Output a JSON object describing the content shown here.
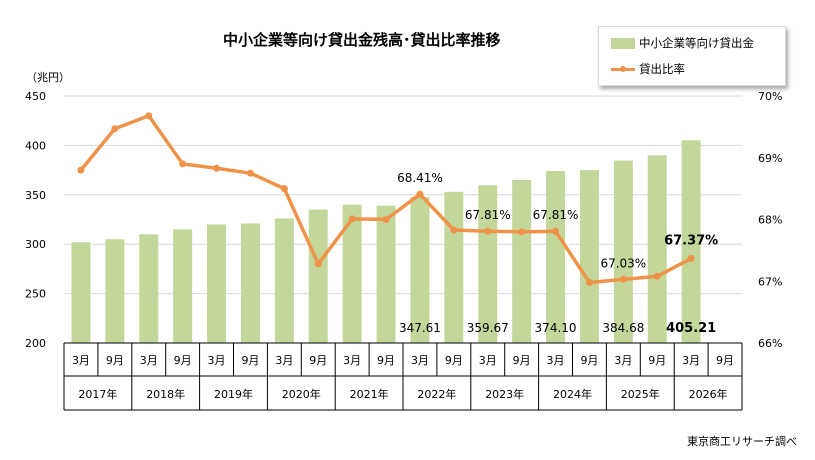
{
  "chart_data": {
    "type": "bar",
    "title": "中小企業等向け貸出金残高･貸出比率推移",
    "unit_label": "（兆円）",
    "source": "東京商工リサーチ調べ",
    "months": [
      "3月",
      "9月",
      "3月",
      "9月",
      "3月",
      "9月",
      "3月",
      "9月",
      "3月",
      "9月",
      "3月",
      "9月",
      "3月",
      "9月",
      "3月",
      "9月",
      "3月",
      "9月",
      "3月",
      "9月"
    ],
    "years": [
      "2017年",
      "2018年",
      "2019年",
      "2020年",
      "2021年",
      "2022年",
      "2023年",
      "2024年",
      "2025年",
      "2026年"
    ],
    "y_left": {
      "min": 200,
      "max": 450,
      "ticks": [
        "200",
        "250",
        "300",
        "350",
        "400",
        "450"
      ]
    },
    "y_right": {
      "min": 66,
      "max": 70,
      "ticks": [
        "66%",
        "67%",
        "68%",
        "69%",
        "70%"
      ]
    },
    "series": [
      {
        "name": "中小企業等向け貸出金",
        "type": "bar",
        "color": "#c4d79b",
        "values": [
          302,
          305,
          310,
          315,
          320,
          321,
          326,
          335,
          340,
          339,
          347.61,
          353,
          359.67,
          365,
          374.1,
          375,
          384.68,
          390,
          405.21,
          null
        ]
      },
      {
        "name": "貸出比率",
        "type": "line",
        "axis": "right",
        "color": "#f0934a",
        "values": [
          68.8,
          69.47,
          69.68,
          68.9,
          68.83,
          68.75,
          68.5,
          67.28,
          68.01,
          68.0,
          68.41,
          67.83,
          67.81,
          67.8,
          67.81,
          66.98,
          67.03,
          67.08,
          67.37,
          null
        ]
      }
    ],
    "bar_labels": [
      {
        "index": 10,
        "text": "347.61",
        "bold": false
      },
      {
        "index": 12,
        "text": "359.67",
        "bold": false
      },
      {
        "index": 14,
        "text": "374.10",
        "bold": false
      },
      {
        "index": 16,
        "text": "384.68",
        "bold": false
      },
      {
        "index": 18,
        "text": "405.21",
        "bold": true
      }
    ],
    "line_labels": [
      {
        "index": 10,
        "text": "68.41%",
        "bold": false
      },
      {
        "index": 12,
        "text": "67.81%",
        "bold": false
      },
      {
        "index": 14,
        "text": "67.81%",
        "bold": false
      },
      {
        "index": 16,
        "text": "67.03%",
        "bold": false
      },
      {
        "index": 18,
        "text": "67.37%",
        "bold": true
      }
    ],
    "grid": true
  }
}
